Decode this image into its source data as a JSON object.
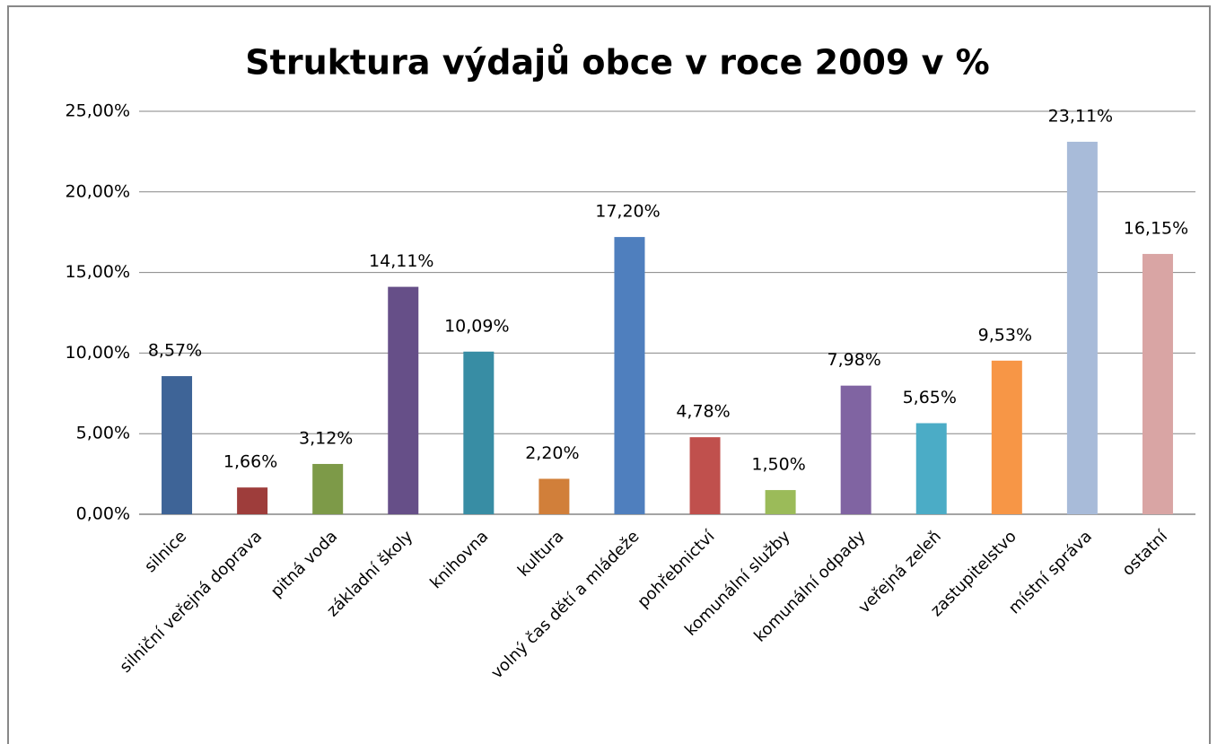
{
  "chart_data": {
    "type": "bar",
    "title": "Struktura výdajů obce v roce 2009 v %",
    "categories": [
      "silnice",
      "silniční veřejná doprava",
      "pitná voda",
      "základní školy",
      "knihovna",
      "kultura",
      "volný čas dětí a mládeže",
      "pohřebnictví",
      "komunální služby",
      "komunální odpady",
      "veřejná zeleň",
      "zastupitelstvo",
      "místní správa",
      "ostatní"
    ],
    "values": [
      8.57,
      1.66,
      3.12,
      14.11,
      10.09,
      2.2,
      17.2,
      4.78,
      1.5,
      7.98,
      5.65,
      9.53,
      23.11,
      16.15
    ],
    "value_labels": [
      "8,57%",
      "1,66%",
      "3,12%",
      "14,11%",
      "10,09%",
      "2,20%",
      "17,20%",
      "4,78%",
      "1,50%",
      "7,98%",
      "5,65%",
      "9,53%",
      "23,11%",
      "16,15%"
    ],
    "colors": [
      "#3e6497",
      "#9e3d3b",
      "#7d9a48",
      "#664f88",
      "#388da4",
      "#d17f3a",
      "#4f7fbe",
      "#c0504d",
      "#9bbb59",
      "#8064a2",
      "#4bacc6",
      "#f79646",
      "#a8bbd9",
      "#d9a5a4"
    ],
    "ylim": [
      0,
      25
    ],
    "yticks": [
      {
        "value": 0,
        "label": "0,00%"
      },
      {
        "value": 5,
        "label": "5,00%"
      },
      {
        "value": 10,
        "label": "10,00%"
      },
      {
        "value": 15,
        "label": "15,00%"
      },
      {
        "value": 20,
        "label": "20,00%"
      },
      {
        "value": 25,
        "label": "25,00%"
      }
    ],
    "grid": true
  }
}
